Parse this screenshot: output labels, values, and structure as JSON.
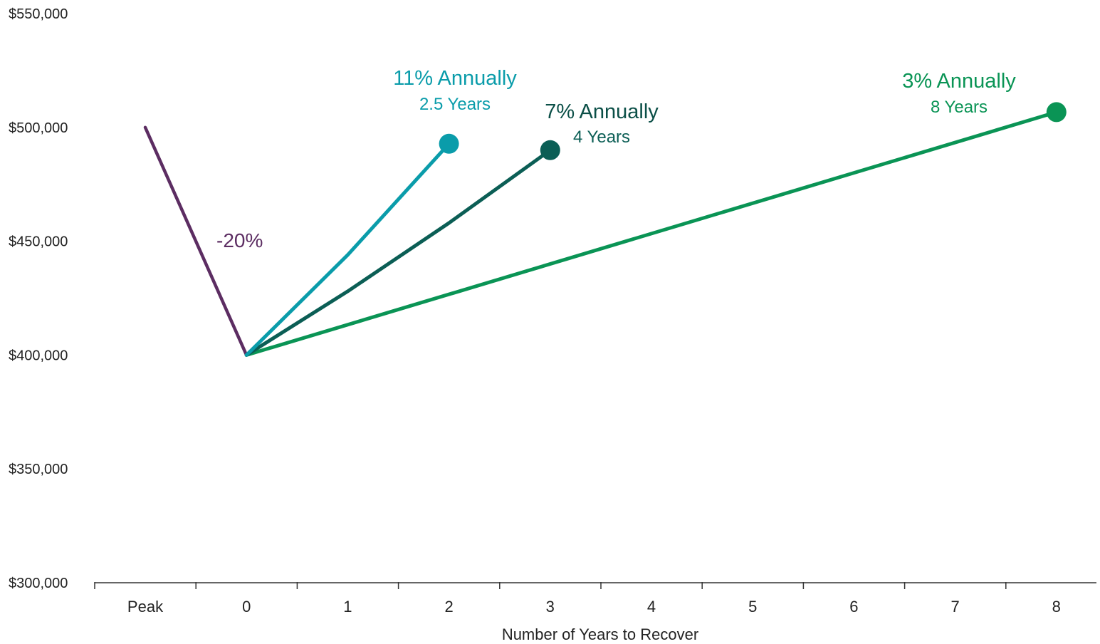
{
  "chart_data": {
    "type": "line",
    "xlabel": "Number of Years to Recover",
    "ylabel": "",
    "categories": [
      "Peak",
      "0",
      "1",
      "2",
      "3",
      "4",
      "5",
      "6",
      "7",
      "8"
    ],
    "y_ticks": [
      "$550,000",
      "$500,000",
      "$450,000",
      "$400,000",
      "$350,000",
      "$300,000"
    ],
    "ylim": [
      300000,
      550000
    ],
    "grid": false,
    "legend": "none",
    "drop": {
      "label": "-20%",
      "color": "#5C2D62",
      "points": [
        [
          -1,
          500000
        ],
        [
          0,
          400000
        ]
      ]
    },
    "series": [
      {
        "color": "#0A9CAA",
        "points": [
          [
            0,
            400000
          ],
          [
            1,
            444000
          ],
          [
            2,
            492800
          ]
        ],
        "end_marker": true,
        "annotation": {
          "title": "11% Annually",
          "subtitle": "2.5 Years",
          "title_color": "#0A9CAA",
          "subtitle_color": "#0A9CAA"
        }
      },
      {
        "color": "#0B5E55",
        "points": [
          [
            0,
            400000
          ],
          [
            1,
            428000
          ],
          [
            2,
            458000
          ],
          [
            3,
            490000
          ]
        ],
        "end_marker": true,
        "annotation": {
          "title": "7% Annually",
          "subtitle": "4 Years",
          "title_color": "#0B4F47",
          "subtitle_color": "#0B5E55"
        }
      },
      {
        "color": "#0A9455",
        "points": [
          [
            0,
            400000
          ],
          [
            8,
            506700
          ]
        ],
        "end_marker": true,
        "annotation": {
          "title": "3% Annually",
          "subtitle": "8 Years",
          "title_color": "#0A9455",
          "subtitle_color": "#0A9455"
        }
      }
    ]
  }
}
